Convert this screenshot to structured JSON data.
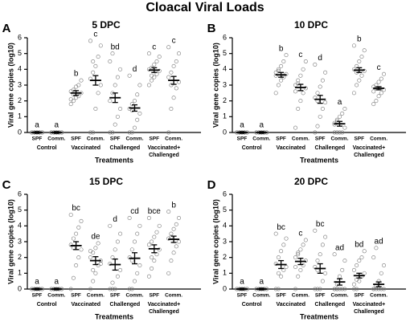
{
  "figure_title": "Cloacal Viral Loads",
  "chart_data": [
    {
      "type": "dot",
      "letter": "A",
      "title": "5 DPC",
      "ylabel": "Viral gene copies (log10)",
      "xlabel": "Treatments",
      "categories": [
        "SPF",
        "Comm.",
        "SPF",
        "Comm.",
        "SPF",
        "Comm.",
        "SPF",
        "Comm."
      ],
      "groups": [
        [
          "Control"
        ],
        [
          "Vaccinated"
        ],
        [
          "Challenged"
        ],
        [
          "Vaccinated+",
          "Challenged"
        ]
      ],
      "ylim": [
        0,
        6
      ],
      "yticks": [
        0,
        1,
        2,
        3,
        4,
        5,
        6
      ],
      "values": [
        0,
        0,
        2.5,
        3.3,
        2.2,
        1.55,
        3.95,
        3.3
      ],
      "errors": [
        0.05,
        0.05,
        0.15,
        0.3,
        0.3,
        0.2,
        0.15,
        0.25
      ],
      "annotations": [
        "a",
        "a",
        "b",
        "c",
        "bd",
        "d",
        "c",
        "c"
      ],
      "points": [
        [
          0,
          0,
          0,
          0,
          0,
          0,
          0,
          0,
          0,
          0
        ],
        [
          0,
          0,
          0,
          0,
          0,
          0,
          0,
          0,
          0,
          0
        ],
        [
          1.8,
          2.0,
          2.2,
          2.3,
          2.5,
          2.6,
          2.7,
          2.9,
          3.0,
          3.3,
          2.1,
          2.4
        ],
        [
          0,
          0,
          1.5,
          2.5,
          3.0,
          3.4,
          3.8,
          4.2,
          4.8,
          5.5,
          5.8,
          4.5
        ],
        [
          0,
          0,
          0.5,
          1.0,
          1.5,
          2.0,
          2.5,
          3.0,
          3.5,
          4.0,
          4.5,
          5.0
        ],
        [
          0,
          0,
          0.3,
          0.8,
          1.2,
          1.5,
          1.8,
          2.0,
          2.4,
          3.0,
          3.6,
          1.4
        ],
        [
          3.0,
          3.3,
          3.5,
          3.7,
          3.9,
          4.0,
          4.1,
          4.3,
          4.5,
          4.8,
          5.0,
          3.6
        ],
        [
          0,
          1.5,
          2.2,
          2.8,
          3.2,
          3.5,
          3.8,
          4.2,
          4.5,
          5.0,
          5.4,
          3.0
        ]
      ]
    },
    {
      "type": "dot",
      "letter": "B",
      "title": "10 DPC",
      "ylabel": "Viral gene copies (log10)",
      "xlabel": "Treatments",
      "categories": [
        "SPF",
        "Comm.",
        "SPF",
        "Comm.",
        "SPF",
        "Comm.",
        "SPF",
        "Comm."
      ],
      "groups": [
        [
          "Control"
        ],
        [
          "Vaccinated"
        ],
        [
          "Challenged"
        ],
        [
          "Vaccinated+",
          "Challenged"
        ]
      ],
      "ylim": [
        0,
        6
      ],
      "yticks": [
        0,
        1,
        2,
        3,
        4,
        5,
        6
      ],
      "values": [
        0,
        0,
        3.65,
        2.85,
        2.1,
        0.55,
        3.95,
        2.8
      ],
      "errors": [
        0.05,
        0.05,
        0.15,
        0.2,
        0.25,
        0.15,
        0.15,
        0.1
      ],
      "annotations": [
        "a",
        "a",
        "b",
        "c",
        "d",
        "a",
        "b",
        "c"
      ],
      "points": [
        [
          0,
          0,
          0,
          0,
          0,
          0,
          0,
          0,
          0,
          0
        ],
        [
          0,
          0,
          0,
          0,
          0,
          0,
          0,
          0,
          0,
          0
        ],
        [
          2.5,
          3.0,
          3.3,
          3.5,
          3.7,
          3.8,
          4.0,
          4.2,
          4.5,
          4.9,
          3.6,
          3.9
        ],
        [
          0.3,
          1.5,
          2.0,
          2.5,
          2.8,
          3.0,
          3.3,
          3.6,
          4.0,
          4.5,
          2.6,
          3.1
        ],
        [
          0,
          0.4,
          1.0,
          1.5,
          1.9,
          2.2,
          2.5,
          2.9,
          3.3,
          3.8,
          4.3,
          2.0
        ],
        [
          0,
          0,
          0,
          0,
          0.3,
          0.5,
          0.7,
          1.0,
          1.2,
          1.5,
          0.6,
          0.8
        ],
        [
          2.5,
          3.0,
          3.3,
          3.6,
          3.9,
          4.0,
          4.2,
          4.5,
          4.8,
          5.2,
          5.5,
          3.8
        ],
        [
          1.8,
          2.0,
          2.3,
          2.5,
          2.7,
          2.9,
          3.0,
          3.2,
          3.4,
          3.7,
          2.6,
          2.8
        ]
      ]
    },
    {
      "type": "dot",
      "letter": "C",
      "title": "15 DPC",
      "ylabel": "Viral gene copies (log10)",
      "xlabel": "Treatments",
      "categories": [
        "SPF",
        "Comm.",
        "SPF",
        "Comm.",
        "SPF",
        "Comm.",
        "SPF",
        "Comm."
      ],
      "groups": [
        [
          "Control"
        ],
        [
          "Vaccinated"
        ],
        [
          "Challenged"
        ],
        [
          "Vaccinated+",
          "Challenged"
        ]
      ],
      "ylim": [
        0,
        6
      ],
      "yticks": [
        0,
        1,
        2,
        3,
        4,
        5,
        6
      ],
      "values": [
        0,
        0,
        2.75,
        1.8,
        1.55,
        1.95,
        2.55,
        3.15
      ],
      "errors": [
        0.05,
        0.05,
        0.25,
        0.25,
        0.35,
        0.35,
        0.25,
        0.2
      ],
      "annotations": [
        "a",
        "a",
        "bc",
        "de",
        "d",
        "cd",
        "bce",
        "b"
      ],
      "points": [
        [
          0,
          0,
          0,
          0,
          0,
          0,
          0,
          0,
          0,
          0
        ],
        [
          0,
          0,
          0,
          0,
          0,
          0,
          0,
          0,
          0,
          0
        ],
        [
          0,
          0.7,
          1.5,
          2.0,
          2.5,
          2.8,
          3.2,
          3.5,
          3.9,
          4.3,
          4.7,
          2.6
        ],
        [
          0,
          0.5,
          1.0,
          1.5,
          1.8,
          2.0,
          2.3,
          2.6,
          2.9,
          1.6,
          2.4,
          1.2
        ],
        [
          0,
          0,
          0,
          0.8,
          1.2,
          1.6,
          2.0,
          2.5,
          3.0,
          3.5,
          4.0,
          0.4
        ],
        [
          0,
          0,
          0.5,
          1.0,
          1.5,
          2.0,
          2.5,
          3.0,
          3.5,
          4.0,
          4.5,
          1.8
        ],
        [
          0.8,
          1.3,
          1.8,
          2.2,
          2.5,
          2.8,
          3.0,
          3.3,
          3.6,
          4.0,
          4.5,
          2.0
        ],
        [
          1.0,
          1.8,
          2.3,
          2.7,
          3.0,
          3.2,
          3.5,
          3.8,
          4.1,
          4.5,
          4.9,
          3.3
        ]
      ]
    },
    {
      "type": "dot",
      "letter": "D",
      "title": "20 DPC",
      "ylabel": "Viral gene copies (log10)",
      "xlabel": "Treatments",
      "categories": [
        "SPF",
        "Comm.",
        "SPF",
        "Comm.",
        "SPF",
        "Comm.",
        "SPF",
        "Comm."
      ],
      "groups": [
        [
          "Control"
        ],
        [
          "Vaccinated"
        ],
        [
          "Challenged"
        ],
        [
          "Vaccinated+",
          "Challenged"
        ]
      ],
      "ylim": [
        0,
        6
      ],
      "yticks": [
        0,
        1,
        2,
        3,
        4,
        5,
        6
      ],
      "values": [
        0,
        0,
        1.55,
        1.75,
        1.3,
        0.45,
        0.85,
        0.3
      ],
      "errors": [
        0.05,
        0.05,
        0.25,
        0.2,
        0.3,
        0.2,
        0.15,
        0.15
      ],
      "annotations": [
        "a",
        "a",
        "bc",
        "c",
        "bc",
        "ad",
        "bd",
        "ad"
      ],
      "points": [
        [
          0,
          0,
          0,
          0,
          0,
          0,
          0,
          0,
          0,
          0
        ],
        [
          0,
          0,
          0,
          0,
          0,
          0,
          0,
          0,
          0,
          0
        ],
        [
          0,
          0,
          0.8,
          1.2,
          1.4,
          1.6,
          2.0,
          2.4,
          2.8,
          3.2,
          3.5,
          1.0
        ],
        [
          0,
          0.8,
          1.2,
          1.5,
          1.8,
          2.0,
          2.2,
          2.5,
          2.8,
          3.1,
          1.4,
          2.3
        ],
        [
          0,
          0,
          0,
          0.5,
          1.0,
          1.4,
          1.8,
          2.2,
          2.8,
          3.3,
          3.7,
          1.2
        ],
        [
          0,
          0,
          0,
          0,
          0,
          0,
          0.3,
          0.8,
          1.2,
          1.8,
          2.2,
          0
        ],
        [
          0,
          0,
          0.5,
          0.8,
          1.0,
          1.2,
          1.5,
          1.8,
          2.0,
          2.4,
          0.3,
          0.6
        ],
        [
          0,
          0,
          0,
          0,
          0,
          0,
          0.2,
          0.5,
          1.0,
          1.5,
          2.0,
          2.6
        ]
      ]
    }
  ]
}
